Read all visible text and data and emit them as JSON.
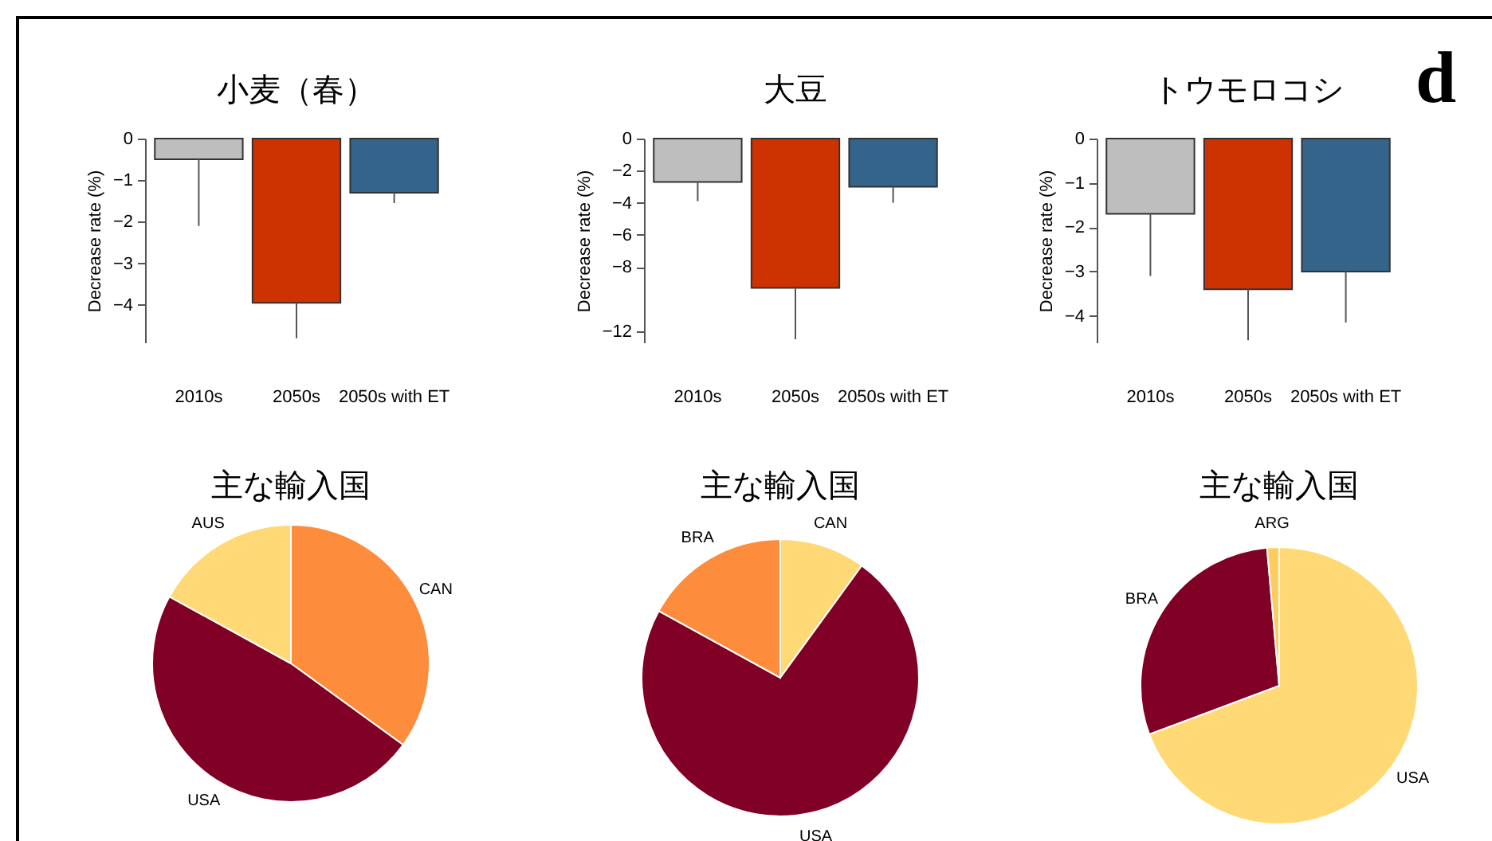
{
  "chart_data": [
    {
      "type": "bar",
      "title": "小麦（春）",
      "ylabel": "Decrease rate (%)",
      "categories": [
        "2010s",
        "2050s",
        "2050s with ET"
      ],
      "values": [
        -0.5,
        -3.95,
        -1.3
      ],
      "colors": [
        "#bebebe",
        "#cc3300",
        "#35648b"
      ],
      "errors": [
        [
          -2.1,
          -0.5
        ],
        [
          -4.8,
          -3.95
        ],
        [
          -1.55,
          -1.3
        ]
      ],
      "ylim": [
        -4.9,
        0
      ],
      "yticks": [
        -4,
        -3,
        -2,
        -1,
        0
      ],
      "grid": false
    },
    {
      "type": "bar",
      "title": "大豆",
      "ylabel": "Decrease rate (%)",
      "categories": [
        "2010s",
        "2050s",
        "2050s with ET"
      ],
      "values": [
        -2.7,
        -9.3,
        -3.0
      ],
      "colors": [
        "#bebebe",
        "#cc3300",
        "#35648b"
      ],
      "errors": [
        [
          -3.9,
          -2.7
        ],
        [
          -12.5,
          -9.3
        ],
        [
          -4.0,
          -3.0
        ]
      ],
      "ylim": [
        -12.7,
        0
      ],
      "yticks": [
        -12,
        -8,
        -6,
        -4,
        -2,
        0
      ],
      "grid": false
    },
    {
      "type": "bar",
      "title": "トウモロコシ",
      "ylabel": "Decrease rate (%)",
      "categories": [
        "2010s",
        "2050s",
        "2050s with ET"
      ],
      "values": [
        -1.7,
        -3.4,
        -3.0
      ],
      "colors": [
        "#bebebe",
        "#cc3300",
        "#35648b"
      ],
      "errors": [
        [
          -3.1,
          -1.7
        ],
        [
          -4.55,
          -3.4
        ],
        [
          -4.15,
          -3.0
        ]
      ],
      "ylim": [
        -4.6,
        0
      ],
      "yticks": [
        -4,
        -3,
        -2,
        -1,
        0
      ],
      "grid": false,
      "annotations": [
        "d"
      ]
    },
    {
      "type": "pie",
      "title": "主な輸入国",
      "categories": [
        "CAN",
        "USA",
        "AUS"
      ],
      "values": [
        35,
        48,
        17
      ],
      "colors": [
        "#fd8d3c",
        "#800026",
        "#fed976"
      ]
    },
    {
      "type": "pie",
      "title": "主な輸入国",
      "categories": [
        "CAN",
        "USA",
        "BRA"
      ],
      "values": [
        10,
        73,
        17
      ],
      "colors": [
        "#fed976",
        "#800026",
        "#fd8d3c"
      ]
    },
    {
      "type": "pie",
      "title": "主な輸入国",
      "categories": [
        "USA",
        "BRA",
        "ARG"
      ],
      "values": [
        69.3,
        29.3,
        1.4
      ],
      "colors": [
        "#fed976",
        "#800026",
        "#fecc5c"
      ]
    }
  ]
}
